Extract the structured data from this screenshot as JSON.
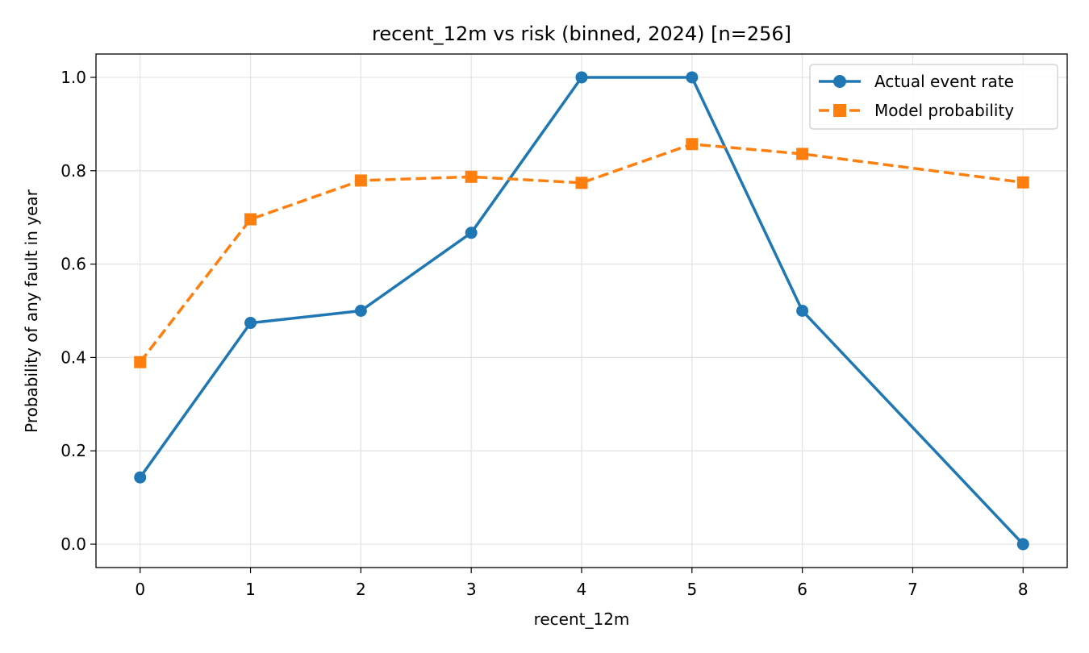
{
  "chart_data": {
    "type": "line",
    "title": "recent_12m vs risk (binned, 2024)  [n=256]",
    "xlabel": "recent_12m",
    "ylabel": "Probability of any fault in year",
    "xlim": [
      -0.4,
      8.4
    ],
    "ylim": [
      -0.05,
      1.05
    ],
    "xticks": [
      0,
      1,
      2,
      3,
      4,
      5,
      6,
      7,
      8
    ],
    "yticks": [
      0.0,
      0.2,
      0.4,
      0.6,
      0.8,
      1.0
    ],
    "ytick_labels": [
      "0.0",
      "0.2",
      "0.4",
      "0.6",
      "0.8",
      "1.0"
    ],
    "grid": true,
    "legend_position": "upper right",
    "series": [
      {
        "name": "Actual event rate",
        "color": "#1f77b4",
        "line_style": "solid",
        "marker": "circle",
        "x": [
          0,
          1,
          2,
          3,
          4,
          5,
          6,
          8
        ],
        "y": [
          0.143,
          0.474,
          0.5,
          0.667,
          1.0,
          1.0,
          0.5,
          0.0
        ]
      },
      {
        "name": "Model probability",
        "color": "#ff7f0e",
        "line_style": "dashed",
        "marker": "square",
        "x": [
          0,
          1,
          2,
          3,
          4,
          5,
          6,
          8
        ],
        "y": [
          0.39,
          0.696,
          0.779,
          0.787,
          0.774,
          0.857,
          0.836,
          0.775
        ]
      }
    ]
  }
}
